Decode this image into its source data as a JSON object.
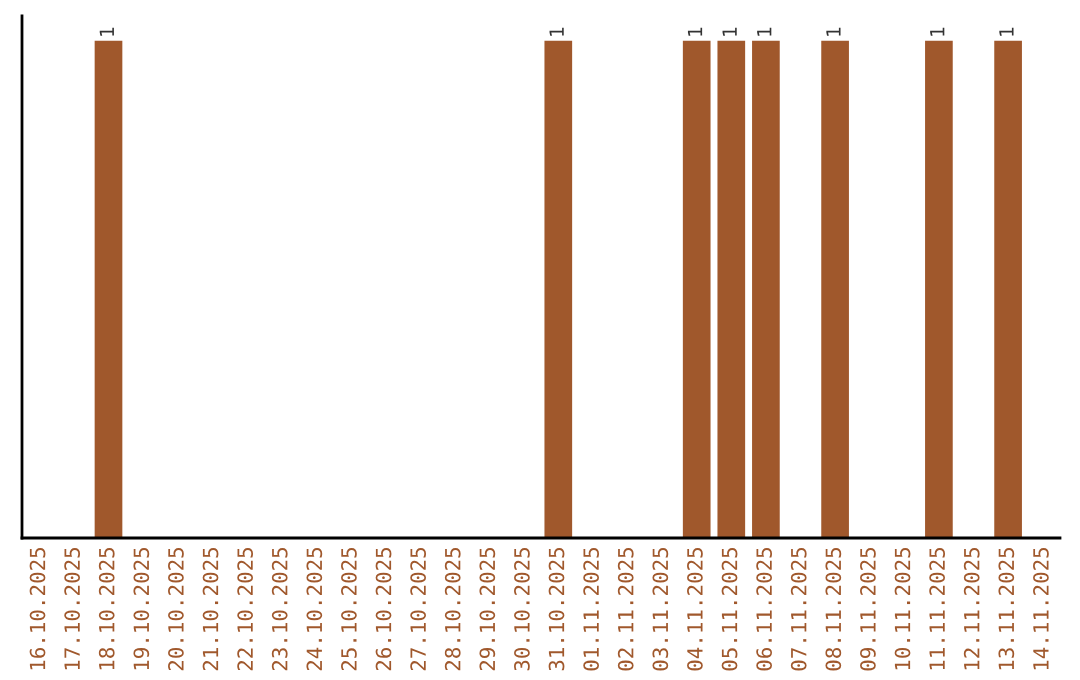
{
  "chart_data": {
    "type": "bar",
    "categories": [
      "16.10.2025",
      "17.10.2025",
      "18.10.2025",
      "19.10.2025",
      "20.10.2025",
      "21.10.2025",
      "22.10.2025",
      "23.10.2025",
      "24.10.2025",
      "25.10.2025",
      "26.10.2025",
      "27.10.2025",
      "28.10.2025",
      "29.10.2025",
      "30.10.2025",
      "31.10.2025",
      "01.11.2025",
      "02.11.2025",
      "03.11.2025",
      "04.11.2025",
      "05.11.2025",
      "06.11.2025",
      "07.11.2025",
      "08.11.2025",
      "09.11.2025",
      "10.11.2025",
      "11.11.2025",
      "12.11.2025",
      "13.11.2025",
      "14.11.2025"
    ],
    "values": [
      0,
      0,
      1,
      0,
      0,
      0,
      0,
      0,
      0,
      0,
      0,
      0,
      0,
      0,
      0,
      1,
      0,
      0,
      0,
      1,
      1,
      1,
      0,
      1,
      0,
      0,
      1,
      0,
      1,
      0
    ],
    "value_labels": [
      null,
      null,
      "1",
      null,
      null,
      null,
      null,
      null,
      null,
      null,
      null,
      null,
      null,
      null,
      null,
      "1",
      null,
      null,
      null,
      "1",
      "1",
      "1",
      null,
      "1",
      null,
      null,
      "1",
      null,
      "1",
      null
    ],
    "color": "#a0582c",
    "ylim": [
      0,
      1.05
    ],
    "tick_labels": "x",
    "grid": false,
    "legend": false
  }
}
